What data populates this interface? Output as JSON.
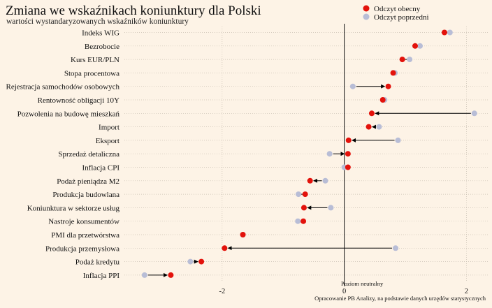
{
  "chart_data": {
    "type": "scatter",
    "title": "Zmiana we wskaźnikach koniunktury dla Polski",
    "subtitle": "wartości wystandaryzowanych wskaźników koniunktury",
    "categories": [
      "Indeks WIG",
      "Bezrobocie",
      "Kurs EUR/PLN",
      "Stopa procentowa",
      "Rejestracja samochodów osobowych",
      "Rentowność obligacji 10Y",
      "Pozwolenia na budowę mieszkań",
      "Import",
      "Eksport",
      "Sprzedaż detaliczna",
      "Inflacja CPI",
      "Podaż pieniądza M2",
      "Produkcja budowlana",
      "Koniunktura w sektorze usług",
      "Nastroje konsumentów",
      "PMI dla przetwórstwa",
      "Produkcja przemysłowa",
      "Podaż kredytu",
      "Inflacja PPI"
    ],
    "series": [
      {
        "name": "Odczyt obecny",
        "values": [
          1.64,
          1.16,
          0.95,
          0.8,
          0.72,
          0.63,
          0.45,
          0.4,
          0.07,
          0.06,
          0.06,
          -0.56,
          -0.64,
          -0.66,
          -0.67,
          -1.66,
          -1.96,
          -2.34,
          -2.84
        ]
      },
      {
        "name": "Odczyt poprzedni",
        "values": [
          1.73,
          1.24,
          1.07,
          0.83,
          0.14,
          0.66,
          2.13,
          0.57,
          0.88,
          -0.24,
          0.0,
          -0.31,
          -0.75,
          -0.22,
          -0.76,
          -1.66,
          0.84,
          -2.52,
          -3.27
        ]
      }
    ],
    "xlim": [
      -3.6,
      2.35
    ],
    "xticks": [
      -2,
      0,
      2
    ],
    "xtick_labels": [
      "-2",
      "0",
      "2"
    ],
    "legend": {
      "placement": "top-right",
      "entries": [
        "Odczyt obecny",
        "Odczyt poprzedni"
      ]
    },
    "annotations": {
      "neutral_label": "Poziom neutralny"
    },
    "grid": true,
    "caption": "Opracowanie PB Analizy, na podstawie danych urzędów statystycznych",
    "colors": {
      "current": "#e3120b",
      "previous": "#b8bdd6",
      "arrow": "#000000",
      "grid": "#c9c0b3",
      "background": "#fdf3e6"
    }
  }
}
